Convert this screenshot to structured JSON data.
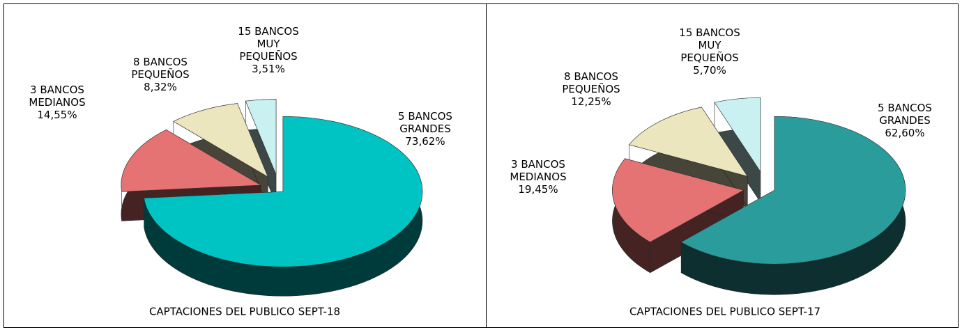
{
  "chart_data": [
    {
      "type": "pie",
      "title": "CAPTACIONES DEL PUBLICO SEPT-18",
      "categories": [
        "5 BANCOS GRANDES",
        "3 BANCOS MEDIANOS",
        "8 BANCOS PEQUEÑOS",
        "15 BANCOS MUY PEQUEÑOS"
      ],
      "values": [
        73.62,
        14.55,
        8.32,
        3.51
      ],
      "value_labels": [
        "73,62%",
        "14,55%",
        "8,32%",
        "3,51%"
      ],
      "colors": [
        "#00c4c4",
        "#e57373",
        "#ebe6bd",
        "#c9f1f1"
      ]
    },
    {
      "type": "pie",
      "title": "CAPTACIONES DEL PUBLICO SEPT-17",
      "categories": [
        "5 BANCOS GRANDES",
        "3 BANCOS MEDIANOS",
        "8 BANCOS PEQUEÑOS",
        "15 BANCOS MUY PEQUEÑOS"
      ],
      "values": [
        62.6,
        19.45,
        12.25,
        5.7
      ],
      "value_labels": [
        "62,60%",
        "19,45%",
        "12,25%",
        "5,70%"
      ],
      "colors": [
        "#2a9c9c",
        "#e57373",
        "#ebe6bd",
        "#c9f1f1"
      ]
    }
  ]
}
